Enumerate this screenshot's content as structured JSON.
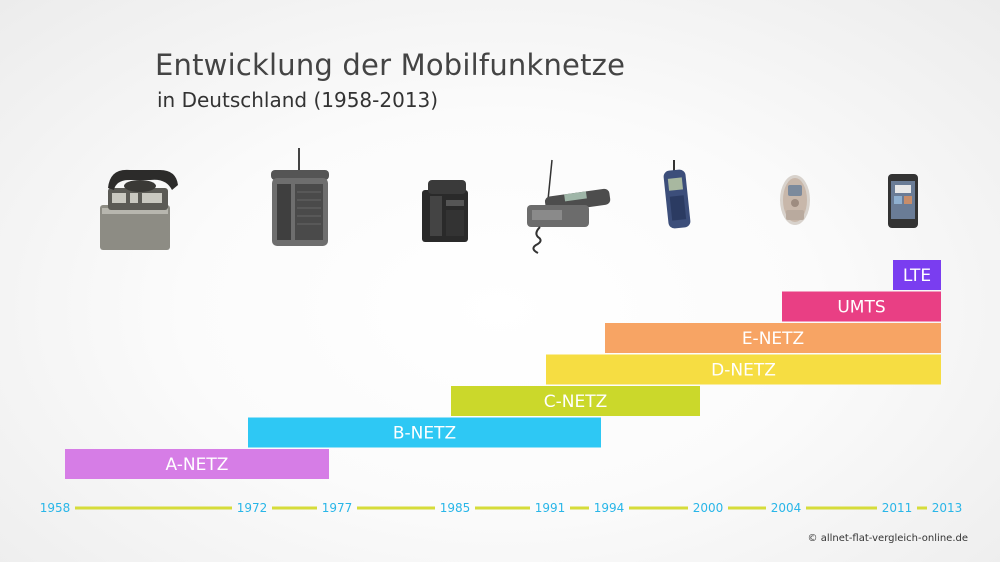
{
  "header": {
    "title": "Entwicklung der Mobilfunknetze",
    "subtitle": "in Deutschland (1958-2013)"
  },
  "copyright": "© allnet-flat-vergleich-online.de",
  "chart_data": {
    "type": "bar",
    "orientation": "horizontal-timeline",
    "title": "Entwicklung der Mobilfunknetze",
    "subtitle": "in Deutschland (1958-2013)",
    "xlabel": "",
    "ylabel": "",
    "grid": false,
    "year_ticks": [
      1958,
      1972,
      1977,
      1985,
      1991,
      1994,
      2000,
      2004,
      2011,
      2013
    ],
    "series": [
      {
        "name": "A-NETZ",
        "start": 1958,
        "end": 1977,
        "color": "#d67de6"
      },
      {
        "name": "B-NETZ",
        "start": 1972,
        "end": 1994,
        "color": "#2ec8f4"
      },
      {
        "name": "C-NETZ",
        "start": 1985,
        "end": 2000,
        "color": "#cbd82b"
      },
      {
        "name": "D-NETZ",
        "start": 1991,
        "end": 2013,
        "color": "#f6dd42"
      },
      {
        "name": "E-NETZ",
        "start": 1994,
        "end": 2013,
        "color": "#f7a464"
      },
      {
        "name": "UMTS",
        "start": 2004,
        "end": 2013,
        "color": "#e93f84"
      },
      {
        "name": "LTE",
        "start": 2011,
        "end": 2013,
        "color": "#7a3df0"
      }
    ],
    "timeline_color": "#d6dc3a",
    "tick_color": "#29b6e8",
    "devices": [
      "mobile-phone-1958",
      "mobile-phone-1972",
      "mobile-phone-1985",
      "mobile-phone-1991",
      "mobile-phone-1994",
      "mobile-phone-2004",
      "mobile-phone-2011"
    ]
  }
}
